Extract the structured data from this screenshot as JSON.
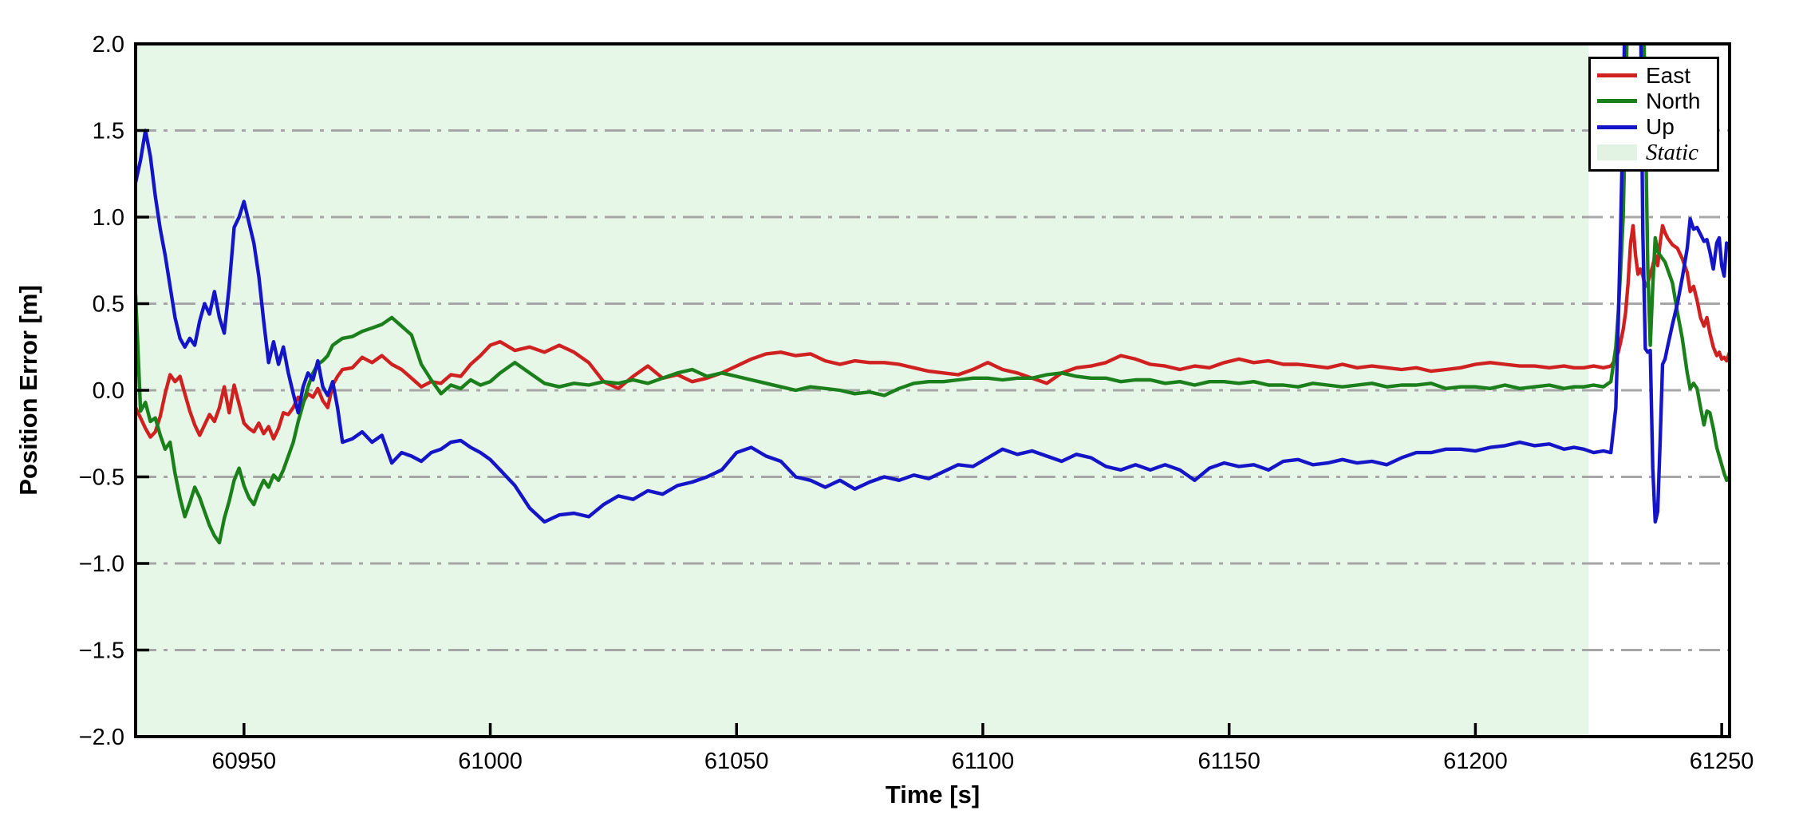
{
  "figure": {
    "background": "#ffffff",
    "axes_background": "#ffffff",
    "frame_color": "#000000",
    "gridline_color": "#a6a6a6"
  },
  "legend": {
    "position": "upper right",
    "entries": [
      {
        "label": "East",
        "color": "#d02121",
        "swatch": "line"
      },
      {
        "label": "North",
        "color": "#1b7f1b",
        "swatch": "line"
      },
      {
        "label": "Up",
        "color": "#1515c8",
        "swatch": "line"
      },
      {
        "label": "Static",
        "color": "#e3f3e3",
        "swatch": "patch",
        "italic": true
      }
    ]
  },
  "chart_data": {
    "type": "line",
    "title": "",
    "xlabel": "Time [s]",
    "ylabel": "Position Error [m]",
    "xlim": [
      60928,
      61251.6
    ],
    "ylim": [
      -2.0,
      2.0
    ],
    "grid": "horizontal dash-dot",
    "legend_position": "upper right",
    "x_ticks": [
      {
        "v": 60950,
        "label": "60950"
      },
      {
        "v": 61000,
        "label": "61000"
      },
      {
        "v": 61050,
        "label": "61050"
      },
      {
        "v": 61100,
        "label": "61100"
      },
      {
        "v": 61150,
        "label": "61150"
      },
      {
        "v": 61200,
        "label": "61200"
      },
      {
        "v": 61250,
        "label": "61250"
      }
    ],
    "y_ticks": [
      {
        "v": -2.0,
        "label": "−2.0"
      },
      {
        "v": -1.5,
        "label": "−1.5"
      },
      {
        "v": -1.0,
        "label": "−1.0"
      },
      {
        "v": -0.5,
        "label": "−0.5"
      },
      {
        "v": 0.0,
        "label": "0.0"
      },
      {
        "v": 0.5,
        "label": "0.5"
      },
      {
        "v": 1.0,
        "label": "1.0"
      },
      {
        "v": 1.5,
        "label": "1.5"
      },
      {
        "v": 2.0,
        "label": "2.0"
      }
    ],
    "regions": [
      {
        "label": "Static",
        "x0": 60928,
        "x1": 61223,
        "color": "#e7f7e7"
      }
    ],
    "x": [
      60928,
      60929,
      60930,
      60931,
      60932,
      60933,
      60934,
      60935,
      60936,
      60937,
      60938,
      60939,
      60940,
      60941,
      60942,
      60943,
      60944,
      60945,
      60946,
      60947,
      60948,
      60949,
      60950,
      60951,
      60952,
      60953,
      60954,
      60955,
      60956,
      60957,
      60958,
      60959,
      60960,
      60961,
      60962,
      60963,
      60964,
      60965,
      60966,
      60967,
      60968,
      60969,
      60970,
      60972,
      60974,
      60976,
      60978,
      60980,
      60982,
      60984,
      60986,
      60988,
      60990,
      60992,
      60994,
      60996,
      60998,
      61000,
      61002,
      61005,
      61008,
      61011,
      61014,
      61017,
      61020,
      61023,
      61026,
      61029,
      61032,
      61035,
      61038,
      61041,
      61044,
      61047,
      61050,
      61053,
      61056,
      61059,
      61062,
      61065,
      61068,
      61071,
      61074,
      61077,
      61080,
      61083,
      61086,
      61089,
      61092,
      61095,
      61098,
      61101,
      61104,
      61107,
      61110,
      61113,
      61116,
      61119,
      61122,
      61125,
      61128,
      61131,
      61134,
      61137,
      61140,
      61143,
      61146,
      61149,
      61152,
      61155,
      61158,
      61161,
      61164,
      61167,
      61170,
      61173,
      61176,
      61179,
      61182,
      61185,
      61188,
      61191,
      61194,
      61197,
      61200,
      61203,
      61206,
      61209,
      61212,
      61215,
      61218,
      61220,
      61222,
      61224,
      61226,
      61227.5,
      61228.5,
      61229,
      61229.5,
      61230,
      61230.5,
      61231,
      61231.5,
      61232,
      61232.5,
      61233,
      61233.5,
      61234,
      61234.5,
      61235,
      61235.5,
      61236,
      61236.5,
      61237,
      61237.5,
      61238,
      61238.5,
      61239,
      61240,
      61241,
      61242,
      61243,
      61243.6,
      61244.3,
      61245,
      61245.7,
      61246.4,
      61247,
      61247.6,
      61248.3,
      61249,
      61249.5,
      61250,
      61250.5,
      61251,
      61251.6
    ],
    "series": [
      {
        "name": "East",
        "color": "#d02121",
        "values": [
          -0.1,
          -0.16,
          -0.22,
          -0.27,
          -0.24,
          -0.15,
          -0.02,
          0.09,
          0.05,
          0.08,
          -0.02,
          -0.12,
          -0.2,
          -0.26,
          -0.2,
          -0.14,
          -0.18,
          -0.1,
          0.02,
          -0.13,
          0.03,
          -0.08,
          -0.19,
          -0.22,
          -0.24,
          -0.19,
          -0.25,
          -0.21,
          -0.28,
          -0.22,
          -0.13,
          -0.14,
          -0.1,
          -0.04,
          -0.07,
          -0.02,
          -0.04,
          0.01,
          -0.06,
          -0.1,
          0.03,
          0.08,
          0.12,
          0.13,
          0.19,
          0.16,
          0.2,
          0.15,
          0.12,
          0.07,
          0.02,
          0.05,
          0.04,
          0.09,
          0.08,
          0.15,
          0.2,
          0.26,
          0.28,
          0.23,
          0.25,
          0.22,
          0.26,
          0.22,
          0.16,
          0.05,
          0.01,
          0.08,
          0.14,
          0.07,
          0.09,
          0.05,
          0.07,
          0.1,
          0.14,
          0.18,
          0.21,
          0.22,
          0.2,
          0.21,
          0.17,
          0.15,
          0.17,
          0.16,
          0.16,
          0.15,
          0.13,
          0.11,
          0.1,
          0.09,
          0.12,
          0.16,
          0.12,
          0.1,
          0.07,
          0.04,
          0.1,
          0.13,
          0.14,
          0.16,
          0.2,
          0.18,
          0.15,
          0.14,
          0.12,
          0.14,
          0.13,
          0.16,
          0.18,
          0.16,
          0.17,
          0.15,
          0.15,
          0.14,
          0.13,
          0.15,
          0.13,
          0.14,
          0.13,
          0.12,
          0.13,
          0.11,
          0.12,
          0.13,
          0.15,
          0.16,
          0.15,
          0.14,
          0.14,
          0.13,
          0.14,
          0.13,
          0.13,
          0.14,
          0.13,
          0.14,
          0.18,
          0.22,
          0.28,
          0.35,
          0.45,
          0.62,
          0.85,
          0.95,
          0.78,
          0.67,
          0.7,
          0.66,
          0.6,
          0.62,
          0.67,
          0.72,
          0.78,
          0.72,
          0.85,
          0.95,
          0.91,
          0.88,
          0.84,
          0.82,
          0.76,
          0.68,
          0.57,
          0.6,
          0.52,
          0.42,
          0.37,
          0.42,
          0.33,
          0.25,
          0.2,
          0.22,
          0.18,
          0.19,
          0.17,
          0.22
        ]
      },
      {
        "name": "North",
        "color": "#1b7f1b",
        "values": [
          0.55,
          -0.12,
          -0.07,
          -0.18,
          -0.16,
          -0.26,
          -0.34,
          -0.3,
          -0.48,
          -0.62,
          -0.73,
          -0.65,
          -0.56,
          -0.62,
          -0.7,
          -0.78,
          -0.84,
          -0.88,
          -0.74,
          -0.64,
          -0.52,
          -0.45,
          -0.55,
          -0.62,
          -0.66,
          -0.58,
          -0.52,
          -0.56,
          -0.49,
          -0.52,
          -0.46,
          -0.38,
          -0.3,
          -0.18,
          -0.08,
          0.02,
          0.1,
          0.15,
          0.17,
          0.2,
          0.26,
          0.28,
          0.3,
          0.31,
          0.34,
          0.36,
          0.38,
          0.42,
          0.37,
          0.32,
          0.15,
          0.06,
          -0.02,
          0.03,
          0.01,
          0.06,
          0.03,
          0.05,
          0.1,
          0.16,
          0.1,
          0.04,
          0.02,
          0.04,
          0.03,
          0.05,
          0.04,
          0.06,
          0.04,
          0.07,
          0.1,
          0.12,
          0.08,
          0.1,
          0.08,
          0.06,
          0.04,
          0.02,
          0.0,
          0.02,
          0.01,
          0.0,
          -0.02,
          -0.01,
          -0.03,
          0.01,
          0.04,
          0.05,
          0.05,
          0.06,
          0.07,
          0.07,
          0.06,
          0.07,
          0.07,
          0.09,
          0.1,
          0.08,
          0.07,
          0.07,
          0.05,
          0.06,
          0.06,
          0.04,
          0.05,
          0.03,
          0.05,
          0.05,
          0.04,
          0.05,
          0.03,
          0.03,
          0.02,
          0.04,
          0.03,
          0.02,
          0.03,
          0.04,
          0.02,
          0.03,
          0.03,
          0.04,
          0.01,
          0.02,
          0.02,
          0.01,
          0.03,
          0.01,
          0.02,
          0.03,
          0.01,
          0.02,
          0.02,
          0.03,
          0.02,
          0.05,
          0.25,
          0.45,
          0.7,
          1.0,
          1.6,
          2.4,
          2.6,
          2.7,
          2.75,
          2.7,
          2.6,
          2.4,
          1.6,
          0.7,
          0.26,
          0.6,
          0.88,
          0.8,
          0.78,
          0.76,
          0.74,
          0.7,
          0.62,
          0.45,
          0.3,
          0.1,
          0.01,
          0.04,
          0.01,
          -0.1,
          -0.2,
          -0.12,
          -0.13,
          -0.22,
          -0.33,
          -0.38,
          -0.43,
          -0.48,
          -0.52,
          -0.5
        ]
      },
      {
        "name": "Up",
        "color": "#1515c8",
        "values": [
          1.2,
          1.33,
          1.5,
          1.35,
          1.12,
          0.93,
          0.78,
          0.6,
          0.42,
          0.3,
          0.25,
          0.3,
          0.26,
          0.4,
          0.5,
          0.44,
          0.57,
          0.42,
          0.33,
          0.6,
          0.94,
          1.0,
          1.09,
          0.97,
          0.85,
          0.66,
          0.4,
          0.16,
          0.28,
          0.15,
          0.25,
          0.1,
          -0.02,
          -0.13,
          0.02,
          0.1,
          0.06,
          0.17,
          0.02,
          -0.03,
          0.05,
          -0.1,
          -0.3,
          -0.28,
          -0.24,
          -0.3,
          -0.26,
          -0.42,
          -0.36,
          -0.38,
          -0.41,
          -0.36,
          -0.34,
          -0.3,
          -0.29,
          -0.33,
          -0.36,
          -0.4,
          -0.46,
          -0.55,
          -0.68,
          -0.76,
          -0.72,
          -0.71,
          -0.73,
          -0.66,
          -0.61,
          -0.63,
          -0.58,
          -0.6,
          -0.55,
          -0.53,
          -0.5,
          -0.46,
          -0.36,
          -0.33,
          -0.38,
          -0.41,
          -0.5,
          -0.52,
          -0.56,
          -0.52,
          -0.57,
          -0.53,
          -0.5,
          -0.52,
          -0.49,
          -0.51,
          -0.47,
          -0.43,
          -0.44,
          -0.39,
          -0.34,
          -0.37,
          -0.35,
          -0.38,
          -0.41,
          -0.37,
          -0.39,
          -0.44,
          -0.46,
          -0.43,
          -0.46,
          -0.43,
          -0.46,
          -0.52,
          -0.45,
          -0.42,
          -0.44,
          -0.43,
          -0.46,
          -0.41,
          -0.4,
          -0.43,
          -0.42,
          -0.4,
          -0.42,
          -0.41,
          -0.43,
          -0.39,
          -0.36,
          -0.36,
          -0.34,
          -0.34,
          -0.35,
          -0.33,
          -0.32,
          -0.3,
          -0.32,
          -0.31,
          -0.34,
          -0.33,
          -0.34,
          -0.36,
          -0.35,
          -0.36,
          -0.1,
          0.4,
          0.95,
          1.6,
          2.4,
          2.7,
          2.8,
          2.85,
          2.8,
          2.7,
          2.3,
          0.9,
          0.24,
          0.22,
          0.23,
          -0.45,
          -0.76,
          -0.7,
          -0.3,
          0.15,
          0.18,
          0.25,
          0.38,
          0.5,
          0.65,
          0.82,
          0.99,
          0.93,
          0.94,
          0.9,
          0.86,
          0.87,
          0.8,
          0.7,
          0.85,
          0.88,
          0.72,
          0.66,
          0.85,
          0.82
        ]
      }
    ]
  }
}
